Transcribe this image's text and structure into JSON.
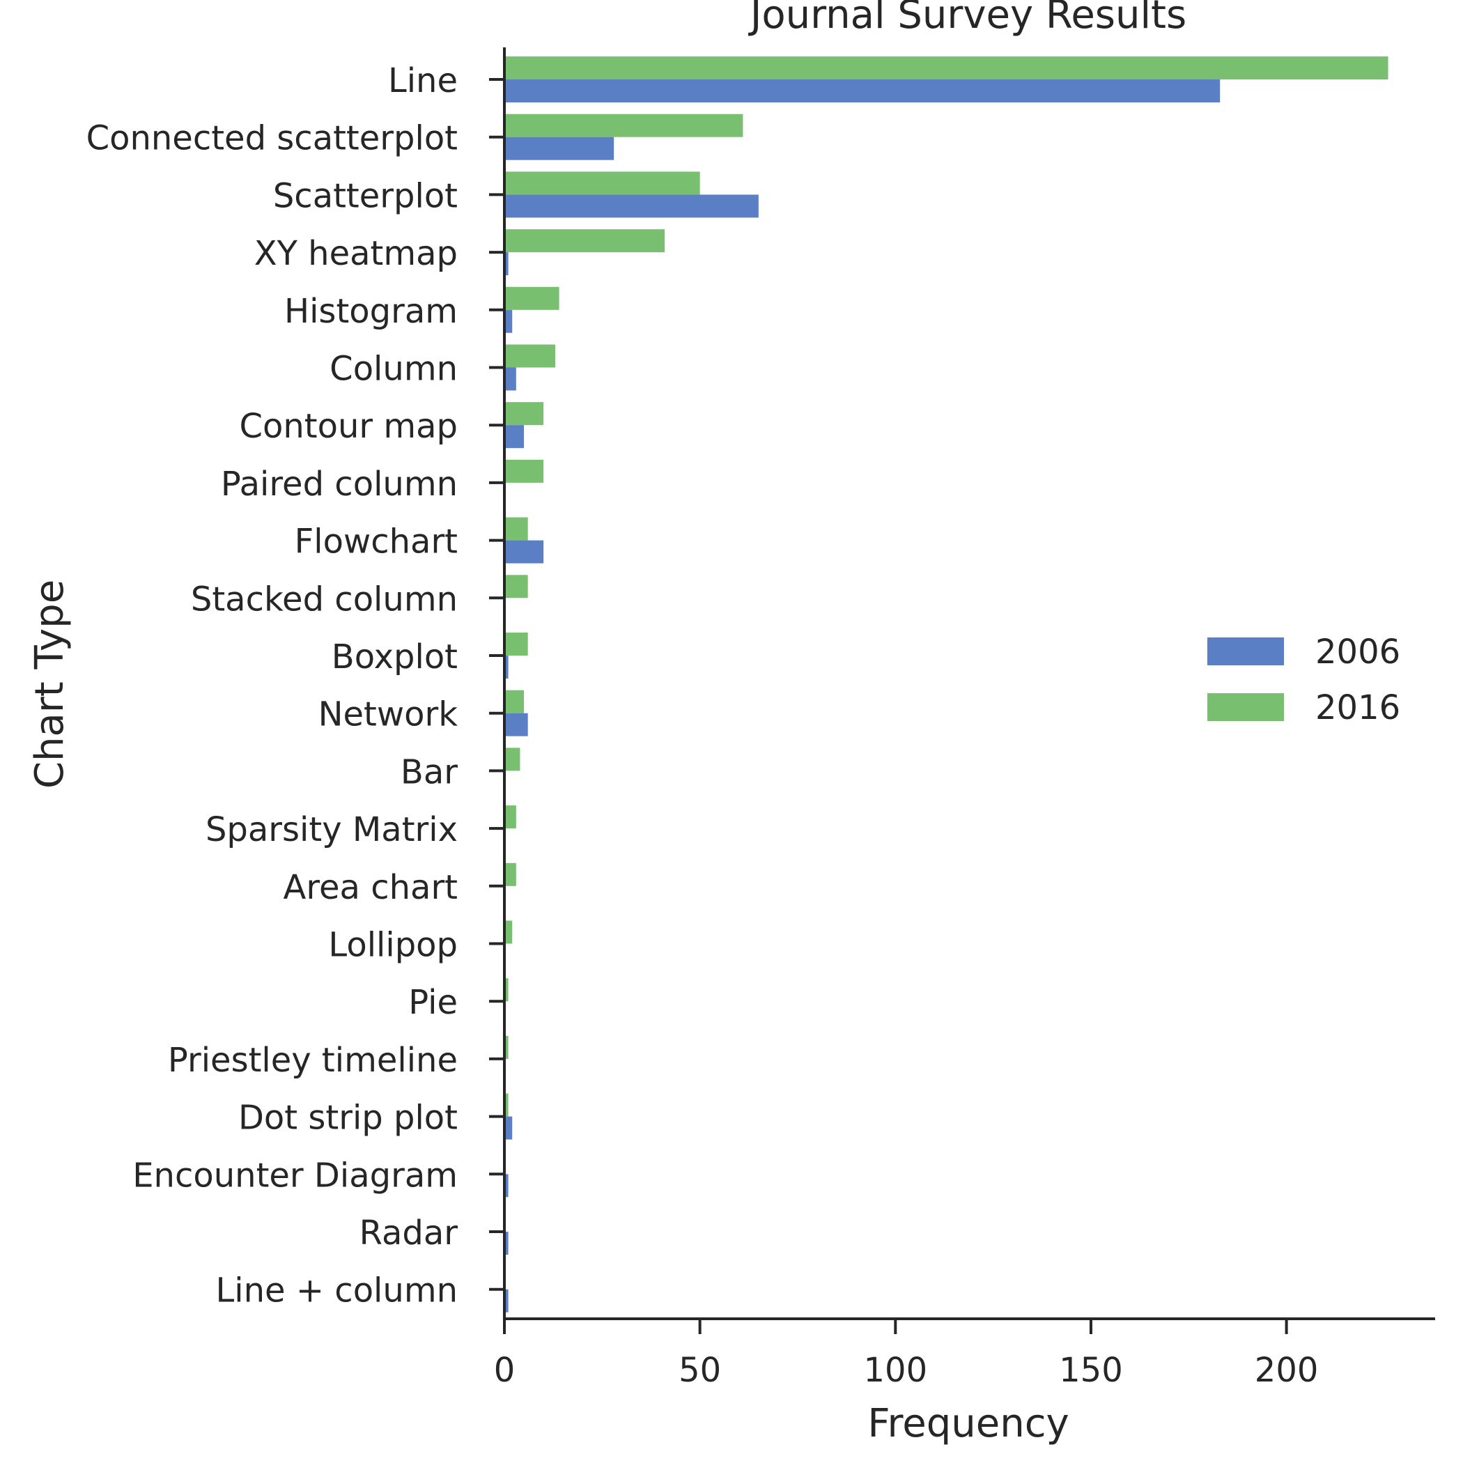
{
  "chart_data": {
    "type": "bar",
    "orientation": "horizontal",
    "title": "Journal Survey Results",
    "xlabel": "Frequency",
    "ylabel": "Chart Type",
    "xlim": [
      0,
      238
    ],
    "xticks": [
      0,
      50,
      100,
      150,
      200
    ],
    "grid": false,
    "legend_position": "right",
    "categories": [
      "Line",
      "Connected scatterplot",
      "Scatterplot",
      "XY heatmap",
      "Histogram",
      "Column",
      "Contour map",
      "Paired column",
      "Flowchart",
      "Stacked column",
      "Boxplot",
      "Network",
      "Bar",
      "Sparsity Matrix",
      "Area chart",
      "Lollipop",
      "Pie",
      "Priestley timeline",
      "Dot strip plot",
      "Encounter Diagram",
      "Radar",
      "Line + column"
    ],
    "series": [
      {
        "name": "2016",
        "color": "#78bf6f",
        "values": [
          226,
          61,
          50,
          41,
          14,
          13,
          10,
          10,
          6,
          6,
          6,
          5,
          4,
          3,
          3,
          2,
          1,
          1,
          1,
          0,
          0,
          0
        ]
      },
      {
        "name": "2006",
        "color": "#5b7fc4",
        "values": [
          183,
          28,
          65,
          1,
          2,
          3,
          5,
          0,
          10,
          0,
          1,
          6,
          0,
          0,
          0,
          0,
          0,
          0,
          2,
          1,
          1,
          1
        ]
      }
    ],
    "legend_order": [
      "2006",
      "2016"
    ]
  }
}
